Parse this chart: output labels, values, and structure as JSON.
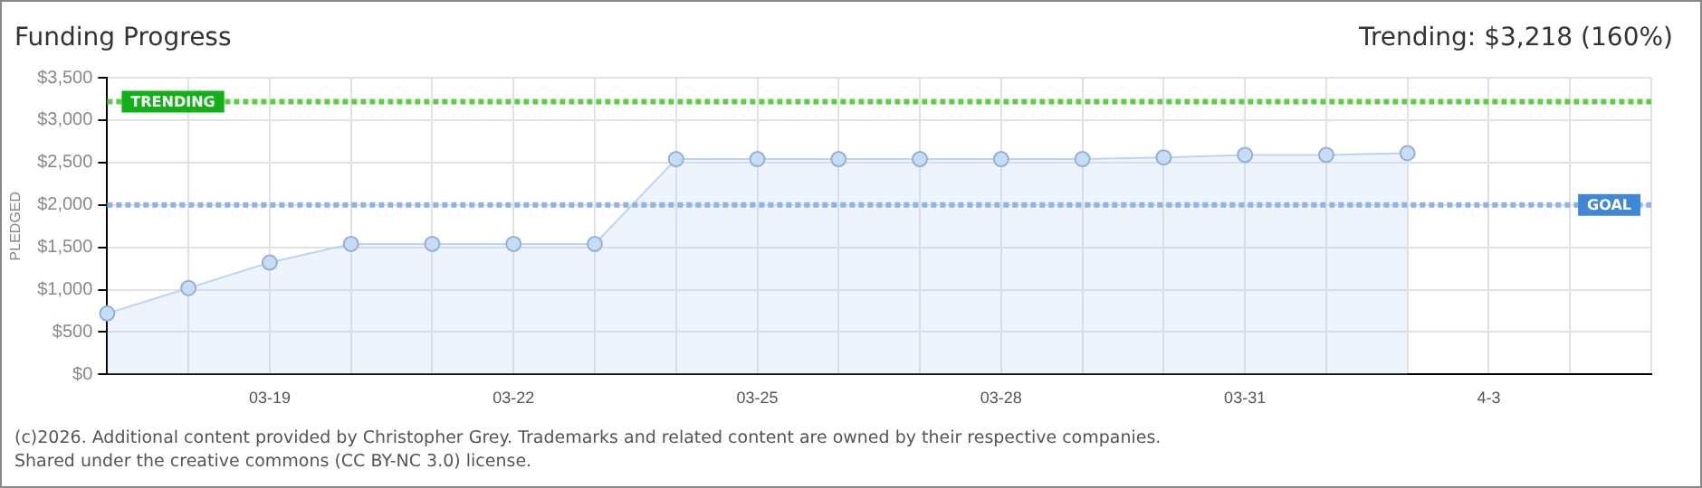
{
  "chart_data": {
    "type": "area",
    "title": "Funding Progress",
    "subtitle": "Trending: $3,218 (160%)",
    "ylabel": "PLEDGED",
    "categories": [
      null,
      null,
      "03-19",
      null,
      null,
      "03-22",
      null,
      null,
      "03-25",
      null,
      null,
      "03-28",
      null,
      null,
      "03-31",
      null,
      null,
      "4-3",
      null,
      null
    ],
    "series": [
      {
        "color": "#b9d5f3",
        "values": [
          720,
          1020,
          1320,
          1540,
          1540,
          1540,
          1540,
          2540,
          2540,
          2540,
          2540,
          2540,
          2540,
          2560,
          2590,
          2590,
          2610,
          null,
          null,
          null
        ]
      }
    ],
    "ylim": [
      0,
      3500
    ],
    "yticks": [
      {
        "value": 0,
        "label": "$0"
      },
      {
        "value": 500,
        "label": "$500"
      },
      {
        "value": 1000,
        "label": "$1,000"
      },
      {
        "value": 1500,
        "label": "$1,500"
      },
      {
        "value": 2000,
        "label": "$2,000"
      },
      {
        "value": 2500,
        "label": "$2,500"
      },
      {
        "value": 3000,
        "label": "$3,000"
      },
      {
        "value": 3500,
        "label": "$3,500"
      }
    ],
    "ref_lines": [
      {
        "axis": "y",
        "value": 3218,
        "label": "TRENDING",
        "color": "#5fcc45",
        "line_style": "dotted"
      },
      {
        "axis": "y",
        "value": 2000,
        "label": "GOAL",
        "color": "#8fb3e3",
        "line_style": "dotted"
      }
    ],
    "grid": true,
    "marker": "circle",
    "legend": false,
    "annotations": [
      "(c)2026. Additional content provided by Christopher Grey. Trademarks and related content are owned by their respective companies.",
      "Shared under the creative commons (CC BY-NC 3.0) license."
    ]
  }
}
